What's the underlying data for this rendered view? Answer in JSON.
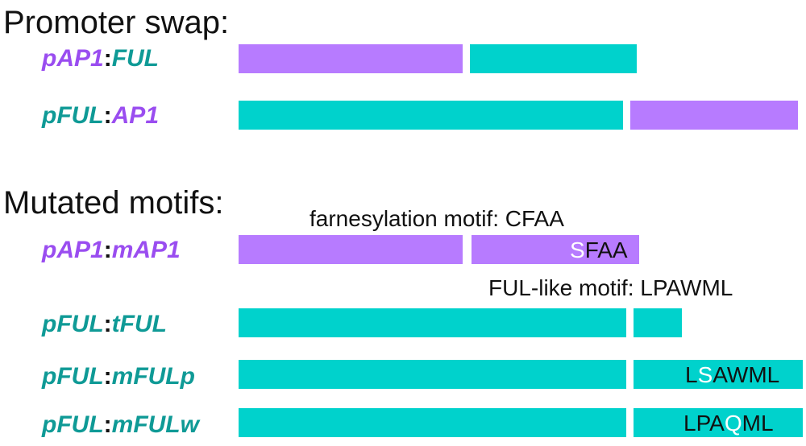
{
  "colors": {
    "ap1": "#b77bff",
    "ful": "#00d2cc",
    "ap1_text": "#9a4df0",
    "ful_text": "#0f9a96"
  },
  "sections": {
    "promoter_swap": "Promoter swap:",
    "mutated_motifs": "Mutated motifs:"
  },
  "constructs": [
    {
      "id": "pap1-ful",
      "prefix": "pAP1",
      "colon": ":",
      "suffix": "FUL",
      "prefix_gene": "ap1",
      "suffix_gene": "ful",
      "segments": [
        {
          "gene": "ap1",
          "label": null
        },
        {
          "gene": "ful",
          "label": null
        }
      ]
    },
    {
      "id": "pful-ap1",
      "prefix": "pFUL",
      "colon": ":",
      "suffix": "AP1",
      "prefix_gene": "ful",
      "suffix_gene": "ap1",
      "segments": [
        {
          "gene": "ful",
          "label": null
        },
        {
          "gene": "ap1",
          "label": null
        }
      ]
    },
    {
      "id": "pap1-map1",
      "prefix": "pAP1",
      "colon": ":",
      "suffix": "mAP1",
      "prefix_gene": "ap1",
      "suffix_gene": "ap1",
      "segments": [
        {
          "gene": "ap1",
          "label": null
        },
        {
          "gene": "ap1",
          "label": {
            "mutated": "S",
            "rest_before": "",
            "rest_after": "FAA"
          }
        }
      ]
    },
    {
      "id": "pful-tful",
      "prefix": "pFUL",
      "colon": ":",
      "suffix": "tFUL",
      "prefix_gene": "ful",
      "suffix_gene": "ful",
      "segments": [
        {
          "gene": "ful",
          "label": null
        },
        {
          "gene": "ful",
          "label": null
        }
      ]
    },
    {
      "id": "pful-mfulp",
      "prefix": "pFUL",
      "colon": ":",
      "suffix": "mFULp",
      "prefix_gene": "ful",
      "suffix_gene": "ful",
      "segments": [
        {
          "gene": "ful",
          "label": null
        },
        {
          "gene": "ful",
          "label": {
            "rest_before": "L",
            "mutated": "S",
            "rest_after": "AWML"
          }
        }
      ]
    },
    {
      "id": "pful-mfulw",
      "prefix": "pFUL",
      "colon": ":",
      "suffix": "mFULw",
      "prefix_gene": "ful",
      "suffix_gene": "ful",
      "segments": [
        {
          "gene": "ful",
          "label": null
        },
        {
          "gene": "ful",
          "label": {
            "rest_before": "LPA",
            "mutated": "Q",
            "rest_after": "ML"
          }
        }
      ]
    }
  ],
  "motif_notes": {
    "farnesylation": "farnesylation motif: CFAA",
    "ful_like": "FUL-like motif:  LPAWML"
  }
}
